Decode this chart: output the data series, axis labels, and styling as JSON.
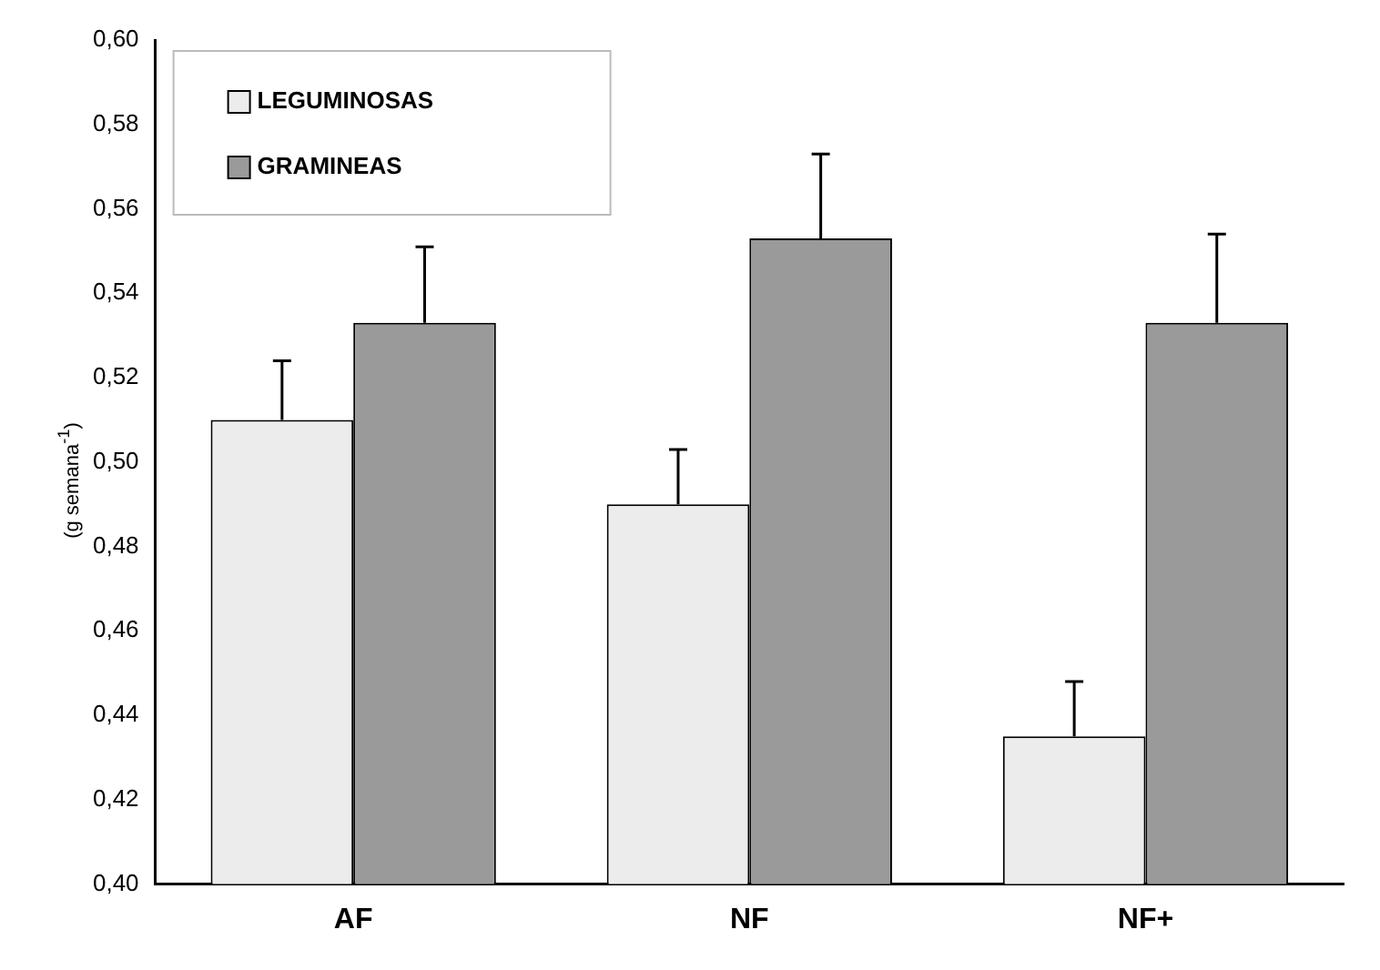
{
  "chart_data": {
    "type": "bar",
    "ylabel": "(g semana$^{-1}$)",
    "categories": [
      "AF",
      "NF",
      "NF+"
    ],
    "series": [
      {
        "name": "LEGUMINOSAS",
        "color": "#ececec",
        "values": [
          0.51,
          0.49,
          0.435
        ],
        "errors": [
          [
            0.51,
            0.524
          ],
          [
            0.49,
            0.503
          ],
          [
            0.435,
            0.448
          ]
        ]
      },
      {
        "name": "GRAMINEAS",
        "color": "#9a9a9a",
        "values": [
          0.533,
          0.553,
          0.533
        ],
        "errors": [
          [
            0.533,
            0.551
          ],
          [
            0.553,
            0.573
          ],
          [
            0.533,
            0.554
          ]
        ]
      }
    ],
    "ylim": [
      0.4,
      0.6
    ],
    "yticks": [
      {
        "value": 0.4,
        "label": "0,40"
      },
      {
        "value": 0.42,
        "label": "0,42"
      },
      {
        "value": 0.44,
        "label": "0,44"
      },
      {
        "value": 0.46,
        "label": "0,46"
      },
      {
        "value": 0.48,
        "label": "0,48"
      },
      {
        "value": 0.5,
        "label": "0,50"
      },
      {
        "value": 0.52,
        "label": "0,52"
      },
      {
        "value": 0.54,
        "label": "0,54"
      },
      {
        "value": 0.56,
        "label": "0,56"
      },
      {
        "value": 0.58,
        "label": "0,58"
      },
      {
        "value": 0.6,
        "label": "0,60"
      }
    ],
    "grid": false,
    "legend": "top left"
  }
}
